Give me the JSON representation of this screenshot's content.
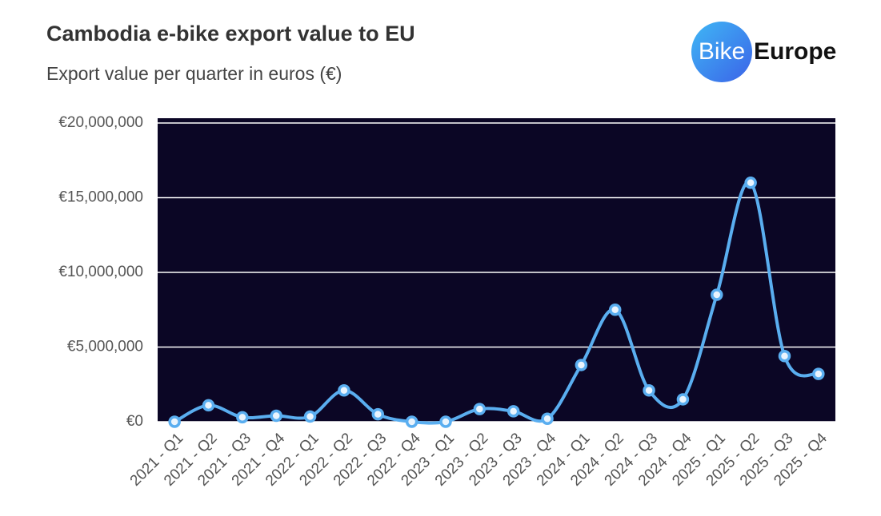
{
  "chart_data": {
    "type": "line",
    "title": "Cambodia e-bike export value to EU",
    "subtitle": "Export value per quarter in euros (€)",
    "logo": {
      "part1": "Bike",
      "part2": "Europe"
    },
    "categories": [
      "2021 - Q1",
      "2021 - Q2",
      "2021 - Q3",
      "2021 - Q4",
      "2022 - Q1",
      "2022 - Q2",
      "2022 - Q3",
      "2022 - Q4",
      "2023 - Q1",
      "2023 - Q2",
      "2023 - Q3",
      "2023 - Q4",
      "2024 - Q1",
      "2024 - Q2",
      "2024 - Q3",
      "2024 - Q4",
      "2025 - Q1",
      "2025 - Q2",
      "2025 - Q3",
      "2025 - Q4"
    ],
    "values": [
      0,
      1100000,
      300000,
      400000,
      350000,
      2100000,
      500000,
      0,
      0,
      850000,
      700000,
      200000,
      3800000,
      7500000,
      2100000,
      1500000,
      8500000,
      16000000,
      4400000,
      3200000
    ],
    "color": "#5aaef0",
    "background": "#0b0625",
    "ylim": [
      0,
      20000000
    ],
    "yticks": [
      {
        "value": 0,
        "label": "€0"
      },
      {
        "value": 5000000,
        "label": "€5,000,000"
      },
      {
        "value": 10000000,
        "label": "€10,000,000"
      },
      {
        "value": 15000000,
        "label": "€15,000,000"
      },
      {
        "value": 20000000,
        "label": "€20,000,000"
      }
    ],
    "grid": true
  }
}
